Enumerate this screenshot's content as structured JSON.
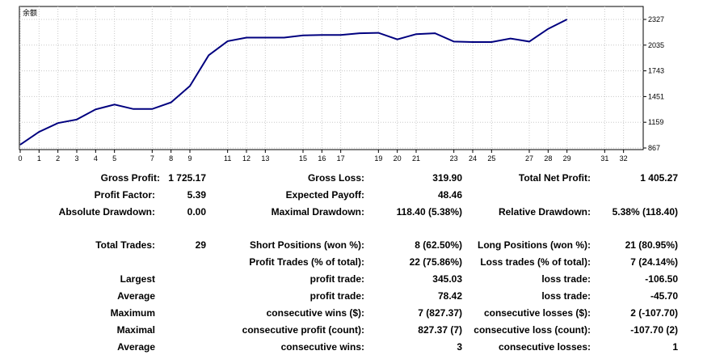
{
  "chart_data": {
    "type": "line",
    "title": "余额",
    "x": [
      0,
      1,
      2,
      3,
      4,
      5,
      6,
      7,
      8,
      9,
      10,
      11,
      12,
      13,
      14,
      15,
      16,
      17,
      18,
      19,
      20,
      21,
      22,
      23,
      24,
      25,
      26,
      27,
      28,
      29
    ],
    "y": [
      905,
      1050,
      1150,
      1190,
      1305,
      1360,
      1310,
      1310,
      1385,
      1570,
      1920,
      2080,
      2120,
      2120,
      2120,
      2145,
      2150,
      2150,
      2170,
      2175,
      2100,
      2160,
      2170,
      2075,
      2070,
      2070,
      2110,
      2075,
      2220,
      2327
    ],
    "xticks": [
      "0",
      "1",
      "2",
      "3",
      "4",
      "5",
      "7",
      "8",
      "9",
      "11",
      "12",
      "13",
      "15",
      "16",
      "17",
      "19",
      "20",
      "21",
      "23",
      "24",
      "25",
      "27",
      "28",
      "29",
      "31",
      "32"
    ],
    "yticks": [
      "2327",
      "2035",
      "1743",
      "1451",
      "1159",
      "867"
    ],
    "ylim": [
      867,
      2327
    ],
    "xlim": [
      0,
      33
    ],
    "grid": true,
    "line_color": "#00007f"
  },
  "stats": {
    "gross_profit": {
      "label": "Gross Profit:",
      "value": "1 725.17"
    },
    "gross_loss": {
      "label": "Gross Loss:",
      "value": "319.90"
    },
    "total_net_profit": {
      "label": "Total Net Profit:",
      "value": "1 405.27"
    },
    "profit_factor": {
      "label": "Profit Factor:",
      "value": "5.39"
    },
    "expected_payoff": {
      "label": "Expected Payoff:",
      "value": "48.46"
    },
    "absolute_drawdown": {
      "label": "Absolute Drawdown:",
      "value": "0.00"
    },
    "maximal_drawdown": {
      "label": "Maximal Drawdown:",
      "value": "118.40 (5.38%)"
    },
    "relative_drawdown": {
      "label": "Relative Drawdown:",
      "value": "5.38% (118.40)"
    },
    "total_trades": {
      "label": "Total Trades:",
      "value": "29"
    },
    "short_positions": {
      "label": "Short Positions (won %):",
      "value": "8 (62.50%)"
    },
    "long_positions": {
      "label": "Long Positions (won %):",
      "value": "21 (80.95%)"
    },
    "profit_trades": {
      "label": "Profit Trades (% of total):",
      "value": "22 (75.86%)"
    },
    "loss_trades": {
      "label": "Loss trades (% of total):",
      "value": "7 (24.14%)"
    },
    "largest": {
      "label": "Largest",
      "profit_label": "profit trade:",
      "profit": "345.03",
      "loss_label": "loss trade:",
      "loss": "-106.50"
    },
    "average": {
      "label": "Average",
      "profit_label": "profit trade:",
      "profit": "78.42",
      "loss_label": "loss trade:",
      "loss": "-45.70"
    },
    "maximum": {
      "label": "Maximum",
      "profit_label": "consecutive wins ($):",
      "profit": "7 (827.37)",
      "loss_label": "consecutive losses ($):",
      "loss": "2 (-107.70)"
    },
    "maximal": {
      "label": "Maximal",
      "profit_label": "consecutive profit (count):",
      "profit": "827.37 (7)",
      "loss_label": "consecutive loss (count):",
      "loss": "-107.70 (2)"
    },
    "average_consec": {
      "label": "Average",
      "profit_label": "consecutive wins:",
      "profit": "3",
      "loss_label": "consecutive losses:",
      "loss": "1"
    }
  }
}
